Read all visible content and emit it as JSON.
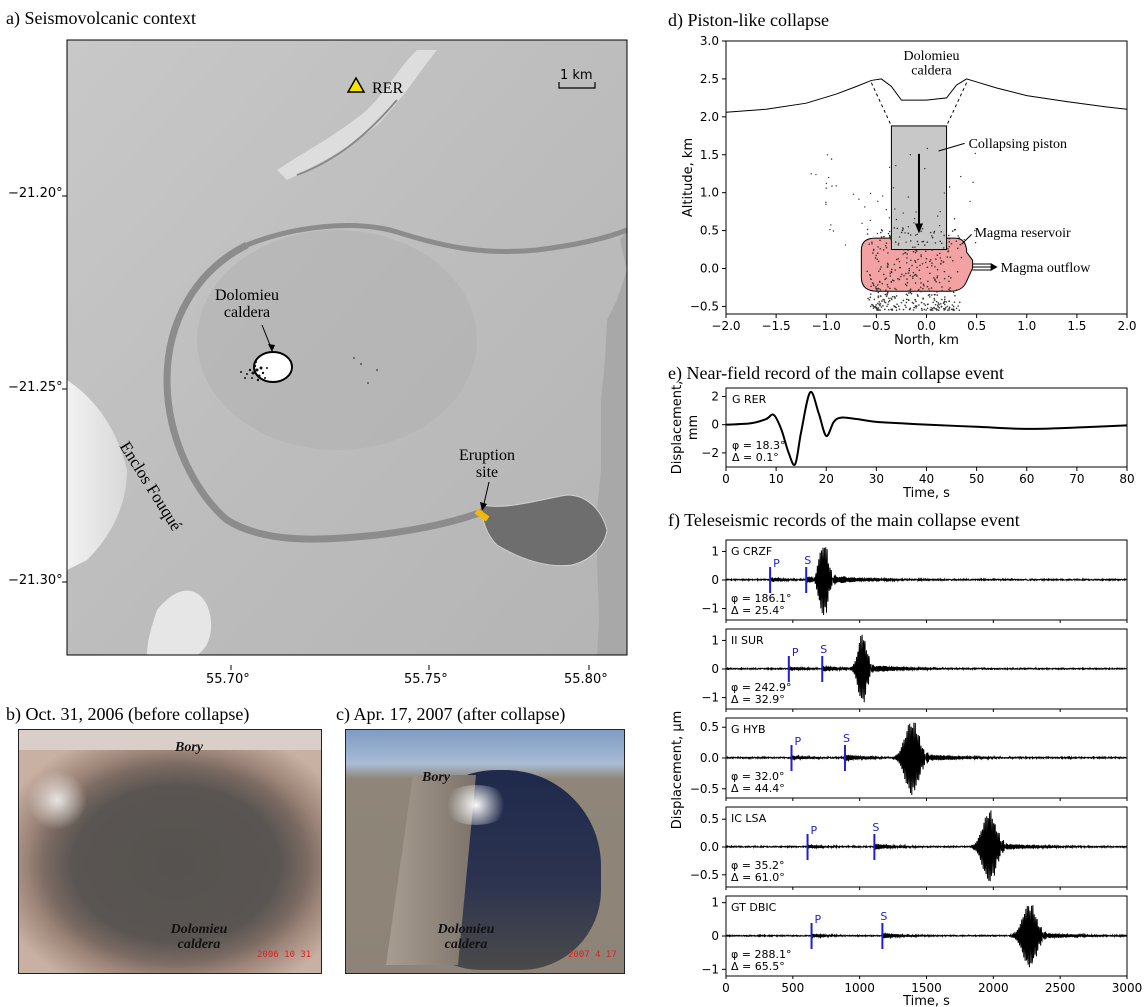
{
  "panels": {
    "a": {
      "title": "a) Seismovolcanic context",
      "station_label": "RER",
      "scale_label": "1 km",
      "lat_ticks": [
        "−21.20°",
        "−21.25°",
        "−21.30°"
      ],
      "lon_ticks": [
        "55.70°",
        "55.75°",
        "55.80°"
      ],
      "caldera_label_1": "Dolomieu",
      "caldera_label_2": "caldera",
      "enclos_label": "Enclos Fouqué",
      "eruption_label_1": "Eruption",
      "eruption_label_2": "site",
      "colors": {
        "station_marker": "#f5e400",
        "eruption_marker": "#f5b800",
        "ocean": "#a8a8a8",
        "lava_flow": "#6e6e6e"
      }
    },
    "b": {
      "title": "b) Oct. 31, 2006 (before collapse)",
      "label_top": "Bory",
      "label_bottom_1": "Dolomieu",
      "label_bottom_2": "caldera",
      "date_stamp": "2006 10 31"
    },
    "c": {
      "title": "c) Apr. 17, 2007 (after collapse)",
      "label_top": "Bory",
      "label_bottom_1": "Dolomieu",
      "label_bottom_2": "caldera",
      "date_stamp": "2007 4 17"
    },
    "d": {
      "title": "d) Piston-like collapse",
      "xlabel": "North, km",
      "ylabel": "Altitude, km",
      "label_caldera_1": "Dolomieu",
      "label_caldera_2": "caldera",
      "label_piston": "Collapsing piston",
      "label_reservoir": "Magma reservoir",
      "label_outflow": "Magma outflow",
      "colors": {
        "piston": "#c8c8c8",
        "reservoir": "#f2a2a2"
      }
    },
    "e": {
      "title": "e) Near-field record of the main collapse event",
      "xlabel": "Time, s",
      "ylabel_1": "Displacement,",
      "ylabel_2": "mm"
    },
    "f": {
      "title": "f) Teleseismic records of the main collapse event",
      "xlabel": "Time, s",
      "ylabel": "Displacement, μm"
    }
  },
  "chart_data": [
    {
      "panel": "d",
      "type": "scatter",
      "title": "d) Piston-like collapse",
      "xlabel": "North, km",
      "ylabel": "Altitude, km",
      "xlim": [
        -2.0,
        2.0
      ],
      "ylim": [
        -0.6,
        3.0
      ],
      "xticks": [
        -2.0,
        -1.5,
        -1.0,
        -0.5,
        0.0,
        0.5,
        1.0,
        1.5,
        2.0
      ],
      "yticks": [
        -0.5,
        0.0,
        0.5,
        1.0,
        1.5,
        2.0,
        2.5,
        3.0
      ],
      "topography": {
        "x": [
          -2.0,
          -1.6,
          -1.2,
          -0.9,
          -0.7,
          -0.55,
          -0.45,
          -0.35,
          -0.25,
          0.0,
          0.2,
          0.3,
          0.4,
          0.5,
          0.7,
          1.0,
          1.4,
          1.8,
          2.0
        ],
        "y": [
          2.06,
          2.1,
          2.18,
          2.3,
          2.4,
          2.48,
          2.5,
          2.4,
          2.22,
          2.22,
          2.25,
          2.42,
          2.5,
          2.46,
          2.38,
          2.28,
          2.2,
          2.13,
          2.1
        ]
      },
      "piston": {
        "x_range": [
          -0.35,
          0.2
        ],
        "y_range": [
          0.25,
          1.88
        ]
      },
      "reservoir": {
        "x_range": [
          -0.65,
          0.4
        ],
        "y_range": [
          -0.3,
          0.4
        ]
      },
      "scatter_summary": "earthquake hypocentres, dense cluster near x -0.5..0.3, y -0.5..0.5"
    },
    {
      "panel": "e",
      "type": "line",
      "series": [
        {
          "name": "G RER",
          "phi": "φ = 18.3°",
          "delta": "Δ = 0.1°",
          "x": [
            0,
            5,
            8,
            9.5,
            11,
            12.5,
            13.8,
            15,
            16.8,
            18.5,
            20,
            21.5,
            23,
            26,
            30,
            35,
            40,
            50,
            60,
            70,
            80
          ],
          "y": [
            0,
            0.1,
            0.4,
            0.7,
            -0.3,
            -2.0,
            -2.8,
            -0.5,
            2.3,
            0.8,
            -0.8,
            0.2,
            0.5,
            0.4,
            0.2,
            0.1,
            0,
            -0.15,
            -0.3,
            -0.2,
            -0.05
          ]
        }
      ],
      "xlabel": "Time, s",
      "ylabel": "Displacement, mm",
      "xlim": [
        0,
        80
      ],
      "ylim": [
        -3,
        2.6
      ],
      "xticks": [
        0,
        10,
        20,
        30,
        40,
        50,
        60,
        70,
        80
      ],
      "yticks": [
        -2,
        0,
        2
      ]
    },
    {
      "panel": "f",
      "type": "line",
      "xlabel": "Time, s",
      "ylabel": "Displacement, μm",
      "xlim": [
        0,
        3000
      ],
      "xticks": [
        0,
        500,
        1000,
        1500,
        2000,
        2500,
        3000
      ],
      "phase_labels": {
        "p": "P",
        "s": "S"
      },
      "traces": [
        {
          "station": "G CRZF",
          "phi": "φ = 186.1°",
          "delta": "Δ = 25.4°",
          "p_time": 330,
          "s_time": 600,
          "burst_center": 730,
          "peak": 1.3,
          "ylim": [
            -1.4,
            1.4
          ],
          "yticks": [
            -1,
            0,
            1
          ]
        },
        {
          "station": "II SUR",
          "phi": "φ = 242.9°",
          "delta": "Δ = 32.9°",
          "p_time": 470,
          "s_time": 720,
          "burst_center": 1020,
          "peak": 1.2,
          "ylim": [
            -1.4,
            1.4
          ],
          "yticks": [
            -1,
            0,
            1
          ]
        },
        {
          "station": "G HYB",
          "phi": "φ = 32.0°",
          "delta": "Δ = 44.4°",
          "p_time": 490,
          "s_time": 890,
          "burst_center": 1390,
          "peak": 0.6,
          "ylim": [
            -0.65,
            0.65
          ],
          "yticks": [
            -0.5,
            0.0,
            0.5
          ]
        },
        {
          "station": "IC LSA",
          "phi": "φ = 35.2°",
          "delta": "Δ = 61.0°",
          "p_time": 610,
          "s_time": 1110,
          "burst_center": 1970,
          "peak": 0.62,
          "ylim": [
            -0.72,
            0.72
          ],
          "yticks": [
            -0.5,
            0.0,
            0.5
          ]
        },
        {
          "station": "GT DBIC",
          "phi": "φ = 288.1°",
          "delta": "Δ = 65.5°",
          "p_time": 640,
          "s_time": 1170,
          "burst_center": 2270,
          "peak": 0.95,
          "ylim": [
            -1.2,
            1.2
          ],
          "yticks": [
            -1,
            0,
            1
          ]
        }
      ]
    }
  ]
}
